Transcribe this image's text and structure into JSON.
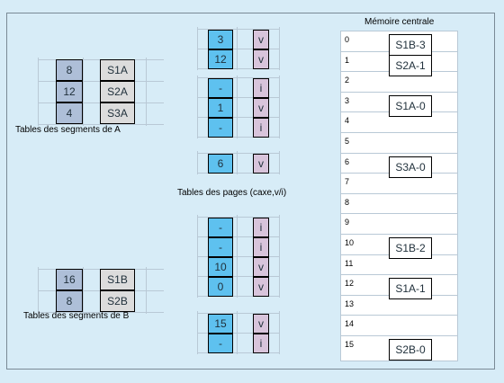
{
  "segments_A": {
    "caption": "Tables des segments de A",
    "rows": [
      {
        "num": "8",
        "name": "S1A"
      },
      {
        "num": "12",
        "name": "S2A"
      },
      {
        "num": "4",
        "name": "S3A"
      }
    ]
  },
  "segments_B": {
    "caption": "Tables des segments de B",
    "rows": [
      {
        "num": "16",
        "name": "S1B"
      },
      {
        "num": "8",
        "name": "S2B"
      }
    ]
  },
  "pages": {
    "caption": "Tables des pages  (caxe,v/i)",
    "tables": [
      [
        {
          "f": "3",
          "s": "v"
        },
        {
          "f": "12",
          "s": "v"
        }
      ],
      [
        {
          "f": "-",
          "s": "i"
        },
        {
          "f": "1",
          "s": "v"
        },
        {
          "f": "-",
          "s": "i"
        }
      ],
      [
        {
          "f": "6",
          "s": "v"
        }
      ],
      [
        {
          "f": "-",
          "s": "i"
        },
        {
          "f": "-",
          "s": "i"
        },
        {
          "f": "10",
          "s": "v"
        },
        {
          "f": "0",
          "s": "v"
        }
      ],
      [
        {
          "f": "15",
          "s": "v"
        },
        {
          "f": "-",
          "s": "i"
        }
      ]
    ]
  },
  "memory": {
    "title": "Mémoire centrale",
    "indices": [
      "0",
      "1",
      "2",
      "3",
      "4",
      "5",
      "6",
      "7",
      "8",
      "9",
      "10",
      "11",
      "12",
      "13",
      "14",
      "15"
    ],
    "blocks": [
      {
        "frame": 0,
        "label": "S1B-3"
      },
      {
        "frame": 1,
        "label": "S2A-1"
      },
      {
        "frame": 3,
        "label": "S1A-0"
      },
      {
        "frame": 6,
        "label": "S3A-0"
      },
      {
        "frame": 10,
        "label": "S1B-2"
      },
      {
        "frame": 12,
        "label": "S1A-1"
      },
      {
        "frame": 15,
        "label": "S2B-0"
      }
    ]
  }
}
